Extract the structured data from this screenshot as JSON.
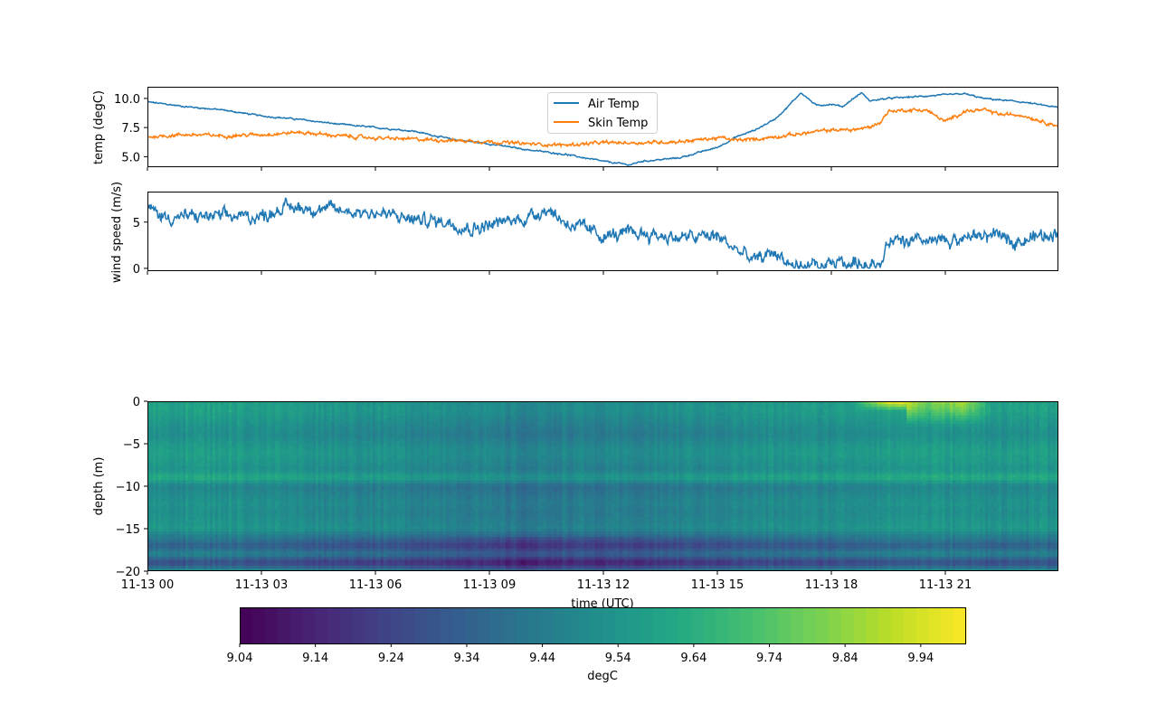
{
  "chart_data": [
    {
      "type": "line",
      "panel": "top",
      "ylabel": "temp (degC)",
      "ylim": [
        4.1,
        11.0
      ],
      "yticks": [
        5.0,
        7.5,
        10.0
      ],
      "ytick_labels": [
        "5.0",
        "7.5",
        "10.0"
      ],
      "xlim_hours": [
        0,
        24
      ],
      "legend": {
        "placement": "upper-center",
        "entries": [
          "Air Temp",
          "Skin Temp"
        ]
      },
      "series": [
        {
          "name": "Air Temp",
          "color": "#1f77b4",
          "x_hours": [
            0,
            1,
            2,
            3,
            4,
            5,
            6,
            7,
            8,
            9,
            10,
            11,
            12,
            12.7,
            13,
            14,
            15,
            15.5,
            16,
            16.5,
            16.8,
            17.2,
            17.6,
            18,
            18.3,
            18.5,
            18.8,
            19,
            19.5,
            20,
            21,
            21.5,
            22,
            23,
            24
          ],
          "y": [
            9.7,
            9.3,
            9.0,
            8.5,
            8.2,
            7.8,
            7.5,
            7.2,
            6.5,
            6.1,
            5.6,
            5.2,
            4.6,
            4.3,
            4.6,
            4.9,
            5.8,
            6.7,
            7.3,
            8.2,
            9.1,
            10.5,
            9.4,
            9.5,
            9.3,
            9.8,
            10.5,
            9.8,
            10.0,
            10.1,
            10.3,
            10.4,
            10.0,
            9.7,
            9.2
          ]
        },
        {
          "name": "Skin Temp",
          "color": "#ff7f0e",
          "x_hours": [
            0,
            1,
            2,
            3,
            4,
            5,
            6,
            7,
            8,
            9,
            10,
            11,
            12,
            13,
            14,
            15,
            15.2,
            15.4,
            16,
            17,
            18,
            18.5,
            19,
            19.3,
            19.5,
            20,
            20.5,
            21,
            21.5,
            22,
            22.5,
            23,
            24
          ],
          "y": [
            6.7,
            6.9,
            6.8,
            6.9,
            7.1,
            6.8,
            6.6,
            6.5,
            6.4,
            6.3,
            6.1,
            6.0,
            6.2,
            6.2,
            6.3,
            6.6,
            6.6,
            6.4,
            6.5,
            6.9,
            7.3,
            7.3,
            7.5,
            8.0,
            8.9,
            9.0,
            9.0,
            8.0,
            8.9,
            9.0,
            8.6,
            8.6,
            7.6
          ]
        }
      ]
    },
    {
      "type": "line",
      "panel": "middle",
      "ylabel": "wind speed (m/s)",
      "ylim": [
        -0.3,
        8.3
      ],
      "yticks": [
        0,
        5
      ],
      "ytick_labels": [
        "0",
        "5"
      ],
      "xlim_hours": [
        0,
        24
      ],
      "series": [
        {
          "name": "wind speed",
          "color": "#1f77b4",
          "x_hours": [
            0,
            0.5,
            1,
            2,
            3,
            3.5,
            4,
            5,
            6,
            7,
            8,
            8.5,
            9,
            10,
            10.5,
            11,
            12,
            13,
            14,
            15,
            15.5,
            16,
            16.5,
            17,
            17.5,
            18,
            19,
            19.3,
            19.5,
            20,
            21,
            22,
            23,
            24
          ],
          "y": [
            6.5,
            5.5,
            5.6,
            5.6,
            5.6,
            6.5,
            6.6,
            6.3,
            6.0,
            5.3,
            5.0,
            4.3,
            4.7,
            5.5,
            6.5,
            5.0,
            3.5,
            3.8,
            3.3,
            3.5,
            2.0,
            0.8,
            1.8,
            0.2,
            0.1,
            0.5,
            0.5,
            0.2,
            2.8,
            2.8,
            2.9,
            3.6,
            3.0,
            4.0
          ]
        }
      ]
    },
    {
      "type": "heatmap",
      "panel": "bottom",
      "xlabel": "time (UTC)",
      "ylabel": "depth (m)",
      "ylim": [
        -20,
        0
      ],
      "yticks": [
        0,
        -5,
        -10,
        -15,
        -20
      ],
      "ytick_labels": [
        "0",
        "−5",
        "−10",
        "−15",
        "−20"
      ],
      "xlim_hours": [
        0,
        24
      ],
      "xticks_hours": [
        0,
        3,
        6,
        9,
        12,
        15,
        18,
        21
      ],
      "xtick_labels": [
        "11-13 00",
        "11-13 03",
        "11-13 06",
        "11-13 09",
        "11-13 12",
        "11-13 15",
        "11-13 18",
        "11-13 21"
      ],
      "colormap": "viridis",
      "depths_m": [
        0,
        -1,
        -2,
        -3,
        -4,
        -5,
        -6,
        -7,
        -8,
        -9,
        -10,
        -11,
        -12,
        -13,
        -14,
        -15,
        -16,
        -17,
        -18,
        -19,
        -20
      ],
      "profile_by_depth_degC": [
        9.55,
        9.56,
        9.53,
        9.5,
        9.48,
        9.52,
        9.55,
        9.53,
        9.5,
        9.6,
        9.44,
        9.47,
        9.5,
        9.48,
        9.5,
        9.52,
        9.4,
        9.28,
        9.42,
        9.2,
        9.45
      ],
      "time_anomaly_hours": [
        0,
        2,
        4,
        6,
        8,
        10,
        11,
        12,
        14,
        16,
        18,
        19,
        20,
        21,
        22,
        24
      ],
      "time_anomaly_degC": [
        0.03,
        0.04,
        0.01,
        -0.01,
        -0.03,
        -0.08,
        -0.05,
        -0.06,
        -0.03,
        0.0,
        0.01,
        0.03,
        0.04,
        0.04,
        0.03,
        0.03
      ],
      "surface_warm_hours": [
        18.5,
        19.3,
        19.8,
        20.5,
        21.5,
        22.3
      ],
      "surface_warm_degC": [
        0.0,
        0.35,
        0.45,
        0.2,
        0.3,
        0.0
      ],
      "colorbar": {
        "label": "degC",
        "range": [
          9.04,
          10.0
        ],
        "ticks": [
          9.04,
          9.14,
          9.24,
          9.34,
          9.44,
          9.54,
          9.64,
          9.74,
          9.84,
          9.94
        ],
        "tick_labels": [
          "9.04",
          "9.14",
          "9.24",
          "9.34",
          "9.44",
          "9.54",
          "9.64",
          "9.74",
          "9.84",
          "9.94"
        ],
        "levels": 58
      }
    }
  ],
  "shared_x": {
    "tick_hours": [
      0,
      3,
      6,
      9,
      12,
      15,
      18,
      21
    ]
  }
}
